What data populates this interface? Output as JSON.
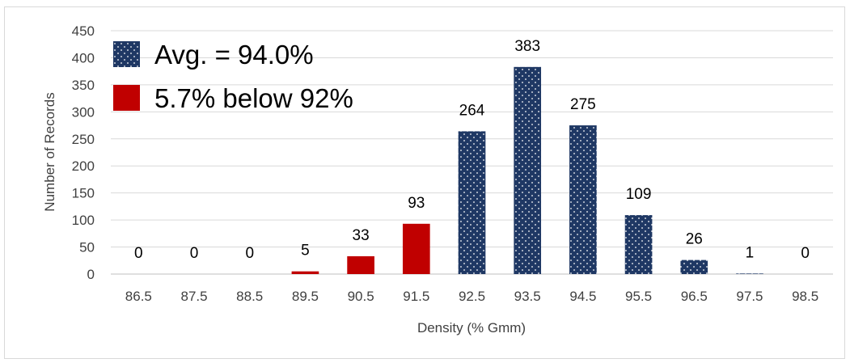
{
  "chart_data": {
    "type": "bar",
    "categories": [
      "86.5",
      "87.5",
      "88.5",
      "89.5",
      "90.5",
      "91.5",
      "92.5",
      "93.5",
      "94.5",
      "95.5",
      "96.5",
      "97.5",
      "98.5"
    ],
    "values": [
      0,
      0,
      0,
      5,
      33,
      93,
      264,
      383,
      275,
      109,
      26,
      1,
      0
    ],
    "value_labels": [
      "0",
      "0",
      "0",
      "5",
      "33",
      "93",
      "264",
      "383",
      "275",
      "109",
      "26",
      "1",
      "0"
    ],
    "bar_group": [
      "below",
      "below",
      "below",
      "below",
      "below",
      "below",
      "avg",
      "avg",
      "avg",
      "avg",
      "avg",
      "avg",
      "avg"
    ],
    "title": "",
    "xlabel": "Density (% Gmm)",
    "ylabel": "Number of Records",
    "ylim": [
      0,
      450
    ],
    "yticks": [
      "0",
      "50",
      "100",
      "150",
      "200",
      "250",
      "300",
      "350",
      "400",
      "450"
    ],
    "grid": true,
    "legend_position": "top-left",
    "series": [
      {
        "key": "avg",
        "name": "Avg. = 94.0%",
        "color": "#1f3864",
        "pattern": "dotted"
      },
      {
        "key": "below",
        "name": "5.7% below 92%",
        "color": "#c00000",
        "pattern": "solid"
      }
    ]
  }
}
